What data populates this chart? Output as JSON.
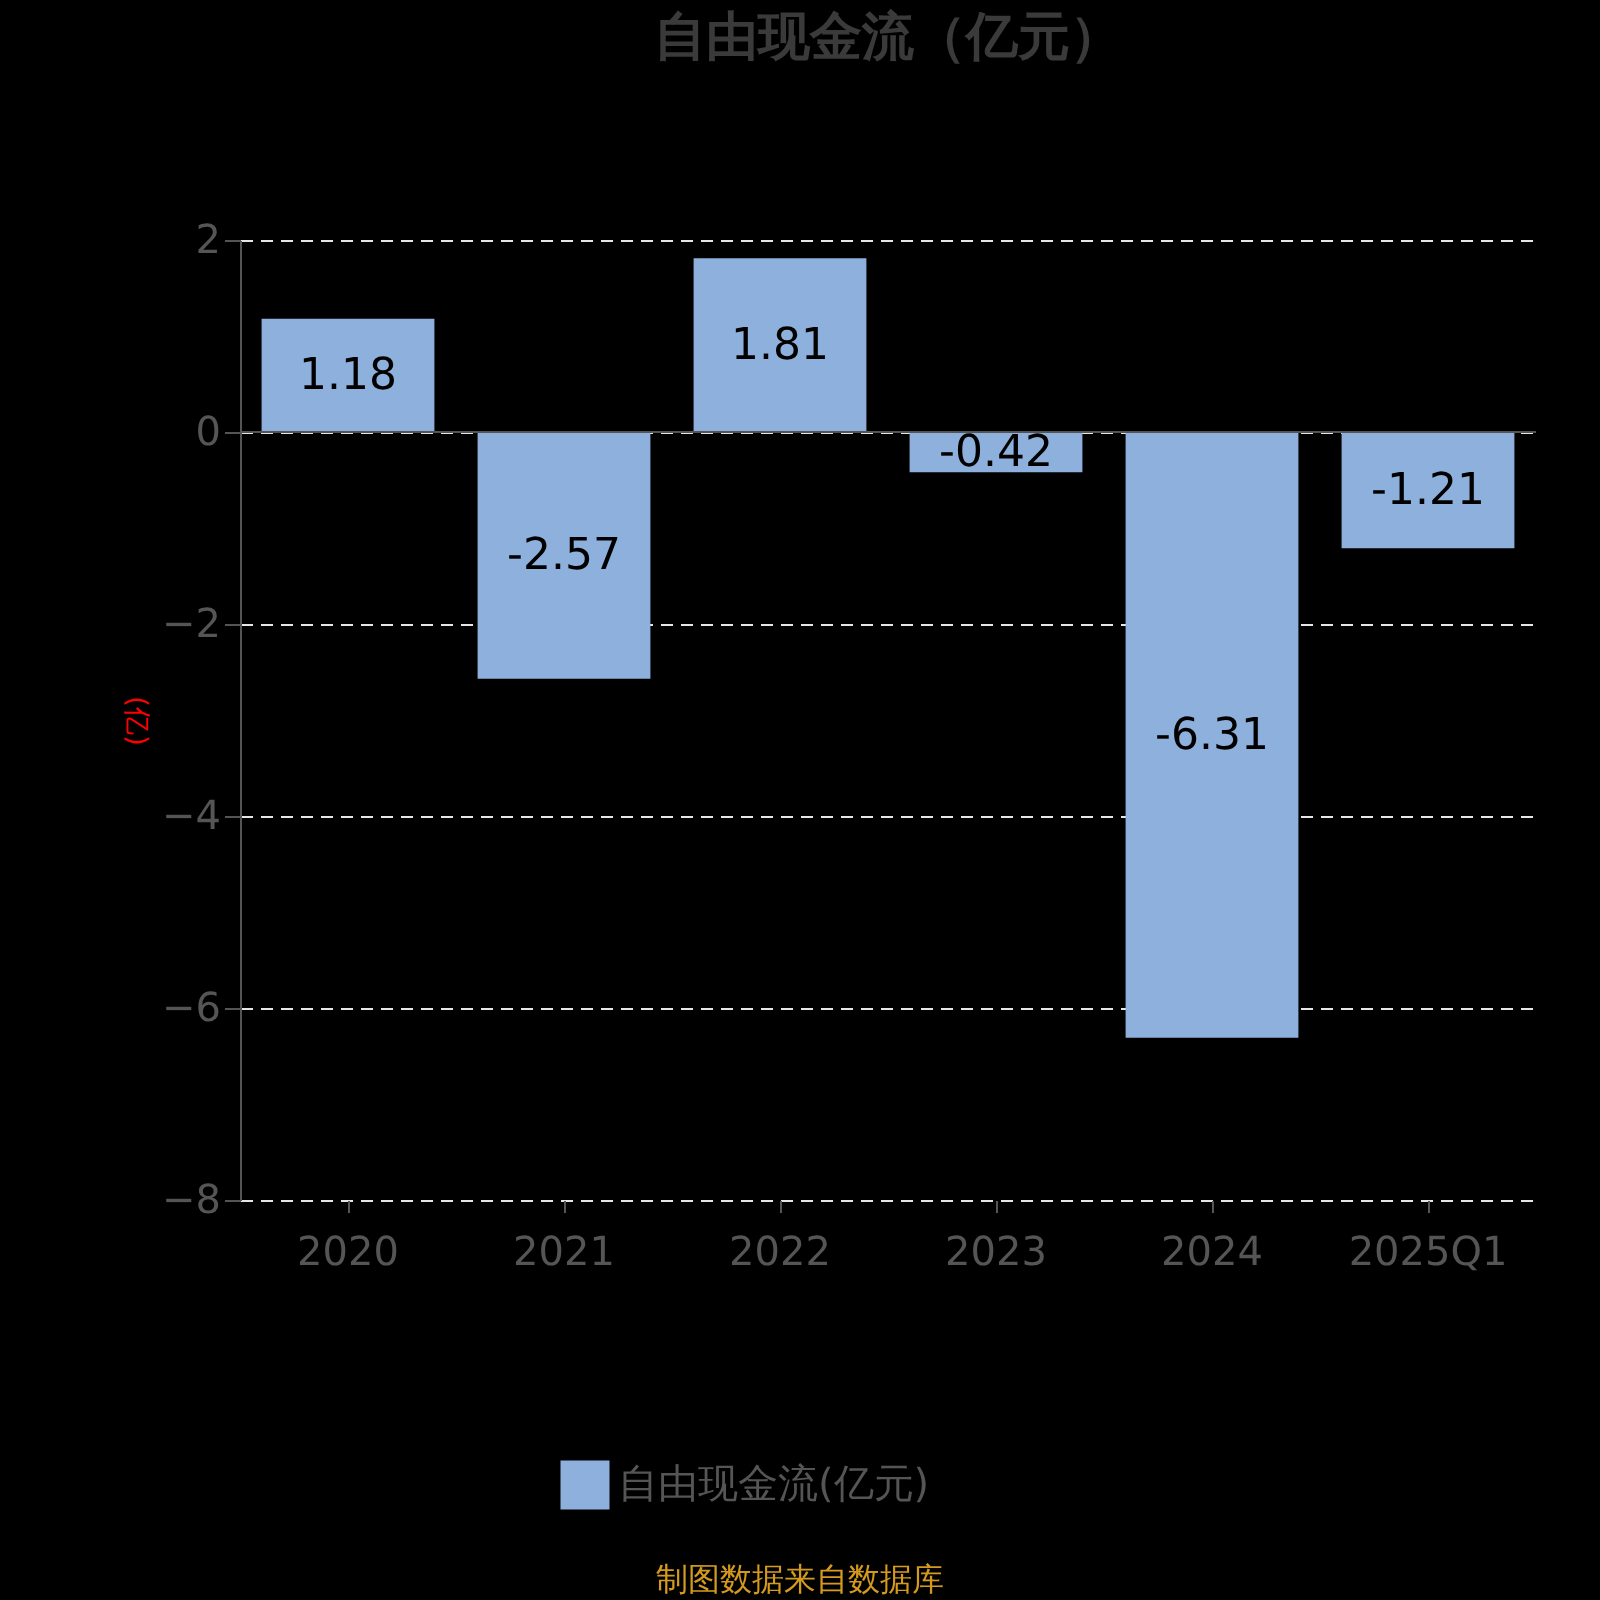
{
  "chart_data": {
    "type": "bar",
    "title": "自由现金流（亿元）",
    "ylabel": "(亿)",
    "categories": [
      "2020",
      "2021",
      "2022",
      "2023",
      "2024",
      "2025Q1"
    ],
    "series": [
      {
        "name": "自由现金流(亿元)",
        "color": "#8eb0dc",
        "values": [
          1.18,
          -2.57,
          1.81,
          -0.42,
          -6.31,
          -1.21
        ]
      }
    ],
    "ylim": [
      -8,
      2
    ],
    "yticks": [
      -8,
      -6,
      -4,
      -2,
      0,
      2
    ],
    "grid": "y",
    "legend": "bottom",
    "data_labels": true,
    "annotations": [
      "制图数据来自数据库"
    ]
  }
}
